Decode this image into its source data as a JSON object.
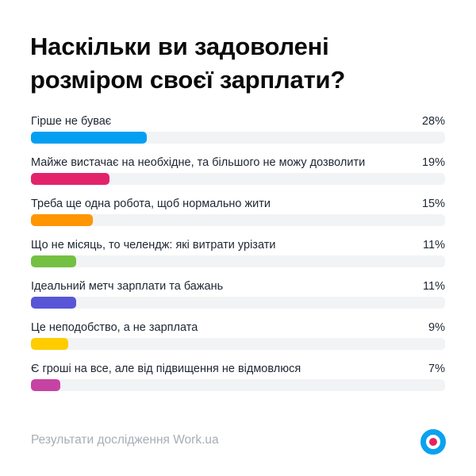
{
  "title": {
    "line1": "Наскільки ви задоволені",
    "line2": "розміром своєї зарплати?"
  },
  "rows": [
    {
      "label": "Гірше не буває",
      "pct_label": "28%",
      "value": 28,
      "color": "#049ff0"
    },
    {
      "label": "Майже вистачає на необхідне, та більшого не можу дозволити",
      "pct_label": "19%",
      "value": 19,
      "color": "#e2236b"
    },
    {
      "label": "Треба ще одна робота, щоб нормально жити",
      "pct_label": "15%",
      "value": 15,
      "color": "#ff9500"
    },
    {
      "label": "Що не місяць, то челендж: які витрати урізати",
      "pct_label": "11%",
      "value": 11,
      "color": "#74c043"
    },
    {
      "label": "Ідеальний метч зарплати та бажань",
      "pct_label": "11%",
      "value": 11,
      "color": "#5856d6"
    },
    {
      "label": "Це неподобство, а не зарплата",
      "pct_label": "9%",
      "value": 9,
      "color": "#ffcc00"
    },
    {
      "label": "Є гроші на все, але від підвищення не відмовлюся",
      "pct_label": "7%",
      "value": 7,
      "color": "#c643a3"
    }
  ],
  "footer": {
    "source": "Результати дослідження Work.ua",
    "logo_icon": "workua-target-logo-icon"
  },
  "colors": {
    "track": "#f2f3f5",
    "logo_ring": "#0aa2ef",
    "logo_dot": "#e5245e"
  },
  "chart_data": {
    "type": "bar",
    "orientation": "horizontal",
    "title": "Наскільки ви задоволені розміром своєї зарплати?",
    "categories": [
      "Гірше не буває",
      "Майже вистачає на необхідне, та більшого не можу дозволити",
      "Треба ще одна робота, щоб нормально жити",
      "Що не місяць, то челендж: які витрати урізати",
      "Ідеальний метч зарплати та бажань",
      "Це неподобство, а не зарплата",
      "Є гроші на все, але від підвищення не відмовлюся"
    ],
    "values": [
      28,
      19,
      15,
      11,
      11,
      9,
      7
    ],
    "unit": "%",
    "xlabel": "",
    "ylabel": "",
    "xlim": [
      0,
      100
    ],
    "grid": false,
    "legend": null,
    "source": "Результати дослідження Work.ua"
  }
}
